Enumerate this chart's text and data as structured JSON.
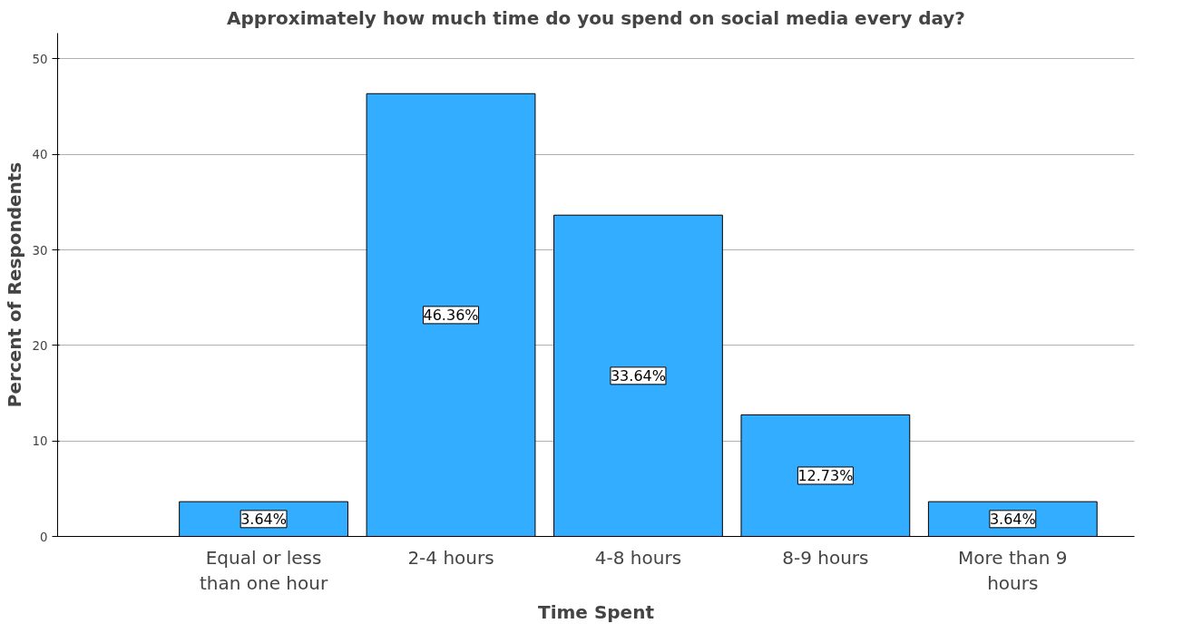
{
  "chart_data": {
    "type": "bar",
    "title": "Approximately how much time do you spend on social media every day?",
    "xlabel": "Time Spent",
    "ylabel": "Percent of Respondents",
    "categories": [
      "Equal or less than one hour",
      "2-4 hours",
      "4-8 hours",
      "8-9 hours",
      "More than 9 hours"
    ],
    "values": [
      3.64,
      46.36,
      33.64,
      12.73,
      3.64
    ],
    "value_labels": [
      "3.64%",
      "46.36%",
      "33.64%",
      "12.73%",
      "3.64%"
    ],
    "color": "#33adff",
    "ylim": [
      0,
      52.7
    ],
    "yticks": [
      0,
      10,
      20,
      30,
      40,
      50
    ],
    "grid": "y"
  }
}
